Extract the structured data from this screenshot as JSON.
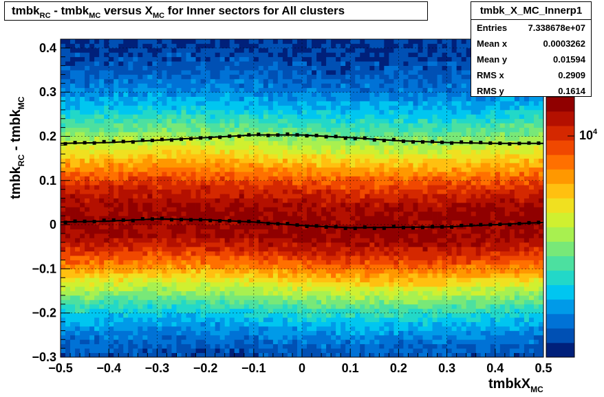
{
  "title": {
    "p1": "tmbk",
    "s1": "RC",
    "p2": " - tmbk",
    "s2": "MC",
    "p3": " versus X",
    "s3": "MC",
    "p4": " for Inner sectors for All clusters"
  },
  "stats": {
    "name": "tmbk_X_MC_Innerp1",
    "rows": [
      {
        "label": "Entries",
        "value": "7.338678e+07"
      },
      {
        "label": "Mean x",
        "value": "0.0003262"
      },
      {
        "label": "Mean y",
        "value": "0.01594"
      },
      {
        "label": "RMS x",
        "value": "0.2909"
      },
      {
        "label": "RMS y",
        "value": "0.1614"
      }
    ]
  },
  "axes": {
    "y_main": "tmbk",
    "y_sub1": "RC",
    "y_mid": " - tmbk",
    "y_sub2": "MC",
    "x_main": "tmbkX",
    "x_sub": "MC"
  },
  "colorbar": {
    "base": "10",
    "exp": "4",
    "log_scale": true
  },
  "chart_data": {
    "type": "heatmap",
    "xlim": [
      -0.5,
      0.5
    ],
    "ylim": [
      -0.3,
      0.42
    ],
    "x_ticks": [
      "−0.5",
      "−0.4",
      "−0.3",
      "−0.2",
      "−0.1",
      "0",
      "0.1",
      "0.2",
      "0.3",
      "0.4",
      "0.5"
    ],
    "x_tick_values": [
      -0.5,
      -0.4,
      -0.3,
      -0.2,
      -0.1,
      0,
      0.1,
      0.2,
      0.3,
      0.4,
      0.5
    ],
    "y_ticks": [
      "−0.3",
      "−0.2",
      "−0.1",
      "0",
      "0.1",
      "0.2",
      "0.3",
      "0.4"
    ],
    "y_tick_values": [
      -0.3,
      -0.2,
      -0.1,
      0,
      0.1,
      0.2,
      0.3,
      0.4
    ],
    "grid": true,
    "palette": [
      "#00207a",
      "#0050b4",
      "#0072d6",
      "#009ae8",
      "#00c6f0",
      "#22d8c8",
      "#4ce0a0",
      "#78e878",
      "#a8f050",
      "#d0f030",
      "#f0e020",
      "#ffc010",
      "#ff9800",
      "#ff7000",
      "#f04800",
      "#d42800",
      "#b41000",
      "#900000"
    ],
    "center_profile": {
      "x": [
        -0.5,
        -0.4,
        -0.3,
        -0.2,
        -0.1,
        0,
        0.1,
        0.2,
        0.3,
        0.4,
        0.5
      ],
      "y": [
        0.006,
        0.008,
        0.013,
        0.011,
        0.006,
        -0.002,
        -0.007,
        -0.006,
        -0.005,
        0.0,
        0.005
      ]
    },
    "sigma_profile": {
      "x": [
        -0.5,
        -0.4,
        -0.3,
        -0.2,
        -0.1,
        0,
        0.1,
        0.2,
        0.3,
        0.4,
        0.5
      ],
      "y": [
        0.184,
        0.186,
        0.191,
        0.197,
        0.203,
        0.203,
        0.197,
        0.19,
        0.186,
        0.184,
        0.184
      ]
    }
  }
}
